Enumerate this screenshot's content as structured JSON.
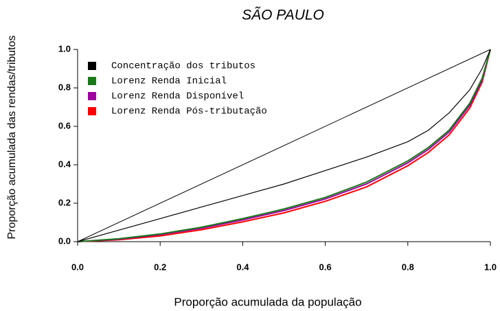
{
  "chart_data": {
    "type": "line",
    "title": "SÃO PAULO",
    "x_label": "Proporção acumulada da população",
    "y_label": "Proporção acumulada das rendas/tributos",
    "x": [
      0,
      0.1,
      0.2,
      0.3,
      0.4,
      0.5,
      0.6,
      0.7,
      0.8,
      0.85,
      0.9,
      0.95,
      0.98,
      1
    ],
    "series": [
      {
        "name": "Concentração dos tributos",
        "color": "#000000",
        "values": [
          0,
          0.06,
          0.12,
          0.18,
          0.24,
          0.3,
          0.37,
          0.44,
          0.52,
          0.58,
          0.67,
          0.79,
          0.9,
          1
        ]
      },
      {
        "name": "Lorenz Renda Inicial",
        "color": "#1a7a1a",
        "values": [
          0,
          0.015,
          0.04,
          0.075,
          0.12,
          0.17,
          0.23,
          0.31,
          0.42,
          0.49,
          0.58,
          0.72,
          0.85,
          1
        ]
      },
      {
        "name": "Lorenz Renda Disponível",
        "color": "#a000a0",
        "values": [
          0,
          0.013,
          0.037,
          0.07,
          0.113,
          0.162,
          0.222,
          0.3,
          0.41,
          0.48,
          0.57,
          0.71,
          0.84,
          1
        ]
      },
      {
        "name": "Lorenz Renda Pós-tributação",
        "color": "#ff0000",
        "values": [
          0,
          0.01,
          0.03,
          0.062,
          0.103,
          0.15,
          0.21,
          0.285,
          0.395,
          0.465,
          0.555,
          0.695,
          0.83,
          1
        ]
      }
    ],
    "reference_line": {
      "x": [
        0,
        1
      ],
      "values": [
        0,
        1
      ],
      "color": "#000000"
    },
    "xlim": [
      0,
      1
    ],
    "ylim": [
      0,
      1
    ],
    "xticks": [
      {
        "value": 0,
        "label": "0.0"
      },
      0.2,
      0.4,
      0.6,
      0.8,
      {
        "value": 1,
        "label": "1.0"
      }
    ],
    "yticks": [
      {
        "value": 0,
        "label": "0.0"
      },
      0.2,
      0.4,
      0.6,
      0.8,
      {
        "value": 1,
        "label": "1.0"
      }
    ],
    "legend": "top-left"
  }
}
